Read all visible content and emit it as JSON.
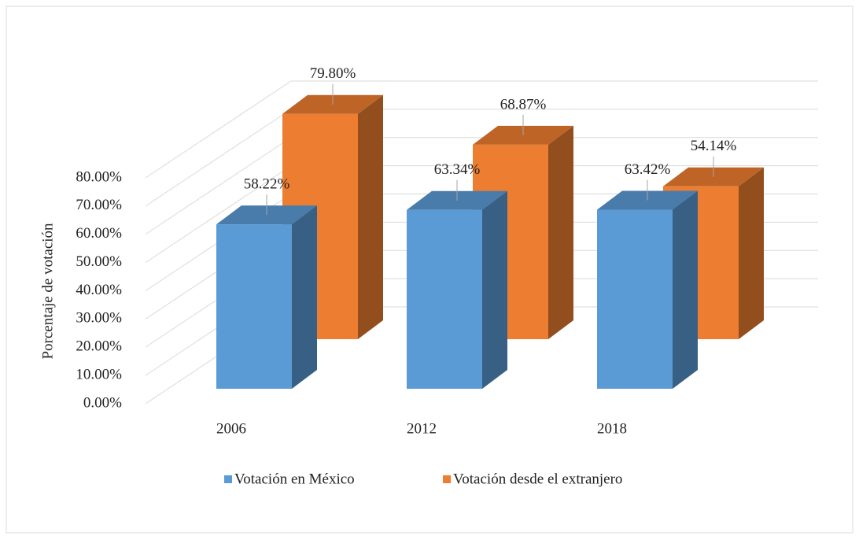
{
  "chart_data": {
    "type": "bar3d",
    "y_label": "Porcentaje de votación",
    "categories": [
      "2006",
      "2012",
      "2018"
    ],
    "series": [
      {
        "name": "Votación en México",
        "color": "#5b9bd5",
        "values": [
          58.22,
          63.34,
          63.42
        ],
        "value_labels": [
          "58.22%",
          "63.34%",
          "63.42%"
        ]
      },
      {
        "name": "Votación desde el extranjero",
        "color": "#ed7d31",
        "values": [
          79.8,
          68.87,
          54.14
        ],
        "value_labels": [
          "79.80%",
          "68.87%",
          "54.14%"
        ]
      }
    ],
    "ylim": [
      0,
      80
    ],
    "yticks": [
      {
        "value": 0,
        "label": "0.00%"
      },
      {
        "value": 10,
        "label": "10.00%"
      },
      {
        "value": 20,
        "label": "20.00%"
      },
      {
        "value": 30,
        "label": "30.00%"
      },
      {
        "value": 40,
        "label": "40.00%"
      },
      {
        "value": 50,
        "label": "50.00%"
      },
      {
        "value": 60,
        "label": "60.00%"
      },
      {
        "value": 70,
        "label": "70.00%"
      },
      {
        "value": 80,
        "label": "80.00%"
      }
    ],
    "grid": true,
    "legend": "bottom"
  }
}
